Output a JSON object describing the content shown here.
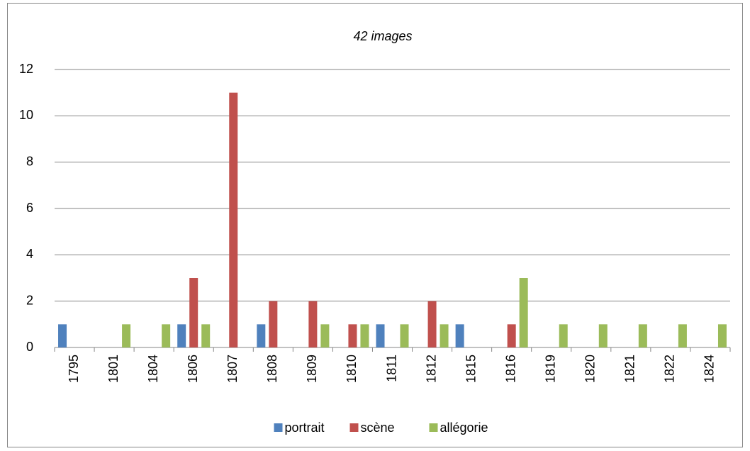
{
  "chart_data": {
    "type": "bar",
    "title": "42 images",
    "categories": [
      "1795",
      "1801",
      "1804",
      "1806",
      "1807",
      "1808",
      "1809",
      "1810",
      "1811",
      "1812",
      "1815",
      "1816",
      "1819",
      "1820",
      "1821",
      "1822",
      "1824"
    ],
    "series": [
      {
        "name": "portrait",
        "color": "#4f81bd",
        "values": [
          1,
          0,
          0,
          1,
          0,
          1,
          0,
          0,
          1,
          0,
          1,
          0,
          0,
          0,
          0,
          0,
          0
        ]
      },
      {
        "name": "scène",
        "color": "#c0504d",
        "values": [
          0,
          0,
          0,
          3,
          11,
          2,
          2,
          1,
          0,
          2,
          0,
          1,
          0,
          0,
          0,
          0,
          0
        ]
      },
      {
        "name": "allégorie",
        "color": "#9bbb59",
        "values": [
          0,
          1,
          1,
          1,
          0,
          0,
          1,
          1,
          1,
          1,
          0,
          3,
          1,
          1,
          1,
          1,
          1
        ]
      }
    ],
    "ylim": [
      0,
      12
    ],
    "yticks": [
      0,
      2,
      4,
      6,
      8,
      10,
      12
    ],
    "grid": true,
    "legend": "bottom"
  }
}
